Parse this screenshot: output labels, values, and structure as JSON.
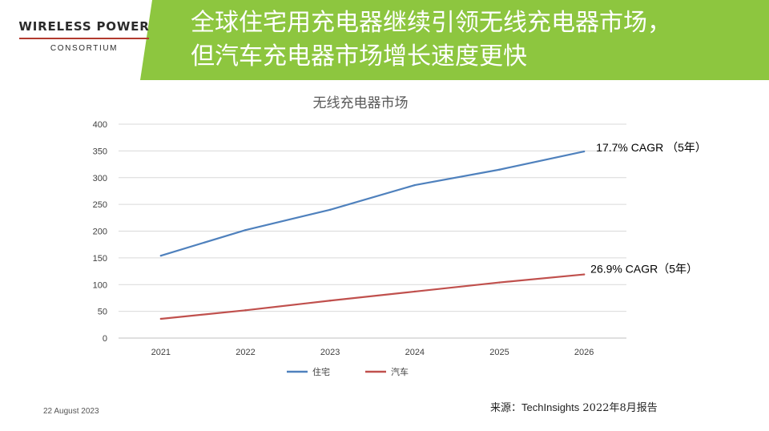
{
  "header": {
    "logo_main": "WIRELESS POWER",
    "logo_sub": "CONSORTIUM",
    "title_line1": "全球住宅用充电器继续引领无线充电器市场，",
    "title_line2": "但汽车充电器市场增长速度更快",
    "bg_color": "#8dc63f"
  },
  "chart_data": {
    "type": "line",
    "title": "无线充电器市场",
    "categories": [
      "2021",
      "2022",
      "2023",
      "2024",
      "2025",
      "2026"
    ],
    "ylim": [
      0,
      400
    ],
    "yticks": [
      "0",
      "50",
      "100",
      "150",
      "200",
      "250",
      "300",
      "350",
      "400"
    ],
    "grid": true,
    "legend_position": "bottom",
    "series": [
      {
        "name": "住宅",
        "values": [
          154,
          202,
          240,
          286,
          315,
          349
        ],
        "color": "#4f81bd",
        "annotation": "17.7% CAGR （5年）"
      },
      {
        "name": "汽车",
        "values": [
          36,
          52,
          70,
          87,
          104,
          119
        ],
        "color": "#c0504d",
        "annotation": "26.9% CAGR（5年）"
      }
    ]
  },
  "footer": {
    "date": "22 August 2023",
    "source_prefix": "来源：",
    "source_brand": "TechInsights",
    "source_suffix": " 2022年8月报告"
  }
}
